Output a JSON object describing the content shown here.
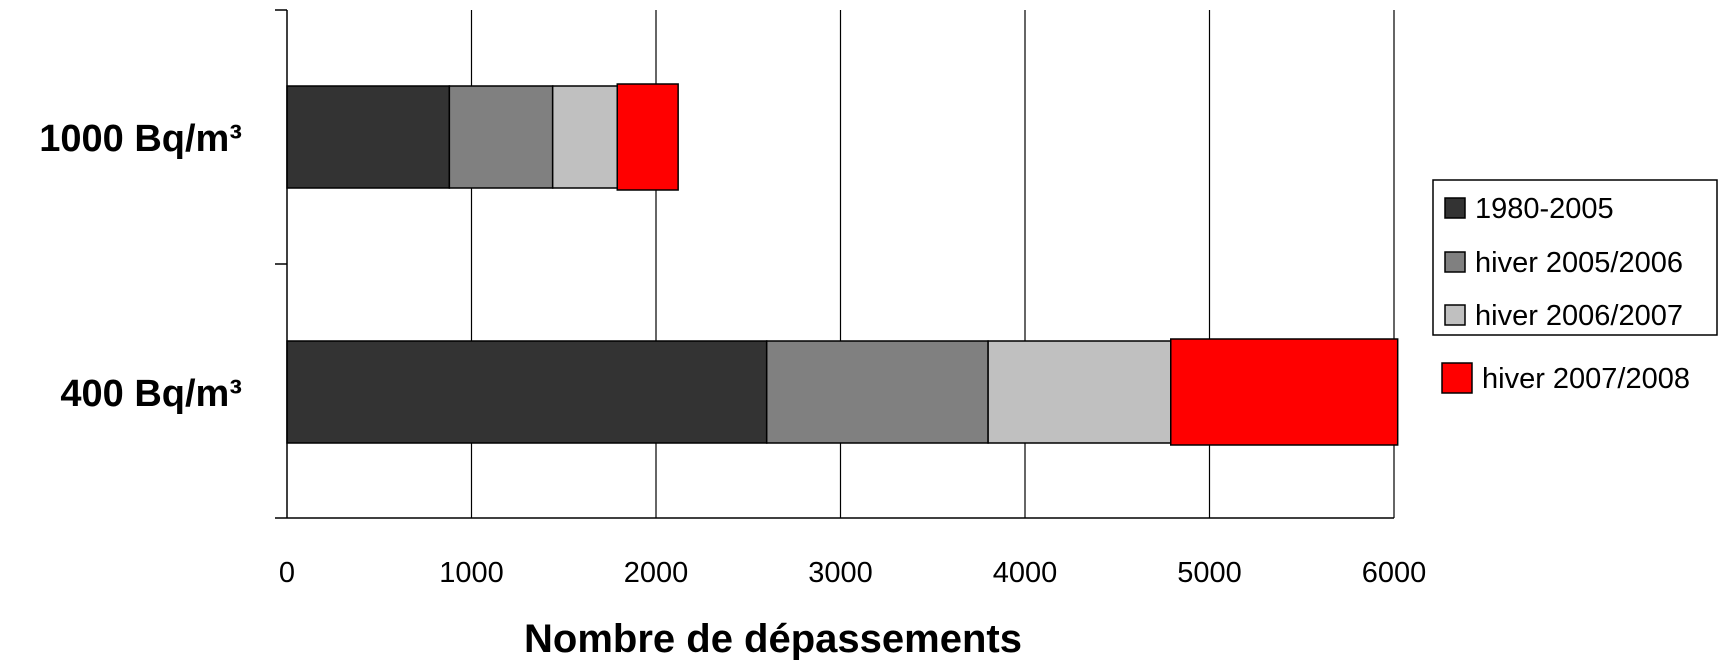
{
  "chart_data": {
    "type": "bar",
    "orientation": "horizontal",
    "stacked": true,
    "categories": [
      "1000 Bq/m³",
      "400 Bq/m³"
    ],
    "series": [
      {
        "name": "1980-2005",
        "values": [
          880,
          2600
        ],
        "color": "#333333"
      },
      {
        "name": "hiver 2005/2006",
        "values": [
          560,
          1200
        ],
        "color": "#808080"
      },
      {
        "name": "hiver 2006/2007",
        "values": [
          350,
          990
        ],
        "color": "#c0c0c0"
      },
      {
        "name": "hiver 2007/2008",
        "values": [
          330,
          1230
        ],
        "color": "#ff0000"
      }
    ],
    "xlabel": "Nombre de dépassements",
    "ylabel": "",
    "xlim": [
      0,
      6000
    ],
    "xticks": [
      "0",
      "1000",
      "2000",
      "3000",
      "4000",
      "5000",
      "6000"
    ],
    "grid": "vertical",
    "legend": "right"
  }
}
